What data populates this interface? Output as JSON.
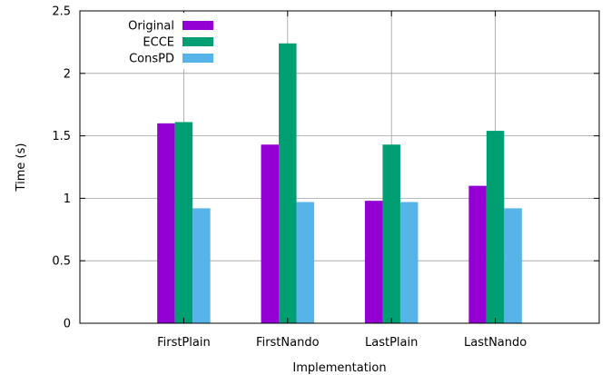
{
  "chart_data": {
    "type": "bar",
    "categories": [
      "FirstPlain",
      "FirstNando",
      "LastPlain",
      "LastNando"
    ],
    "series": [
      {
        "name": "Original",
        "color": "#9400d3",
        "values": [
          1.6,
          1.43,
          0.98,
          1.1
        ]
      },
      {
        "name": "ECCE",
        "color": "#009e73",
        "values": [
          1.61,
          2.24,
          1.43,
          1.54
        ]
      },
      {
        "name": "ConsPD",
        "color": "#56b4e9",
        "values": [
          0.92,
          0.97,
          0.97,
          0.92
        ]
      }
    ],
    "title": "",
    "xlabel": "Implementation",
    "ylabel": "Time (s)",
    "ylim": [
      0,
      2.5
    ],
    "yticks": [
      0,
      0.5,
      1,
      1.5,
      2,
      2.5
    ],
    "ytick_labels": [
      "0",
      "0.5",
      "1",
      "1.5",
      "2",
      "2.5"
    ],
    "grid": true,
    "legend_position": "top-left"
  }
}
